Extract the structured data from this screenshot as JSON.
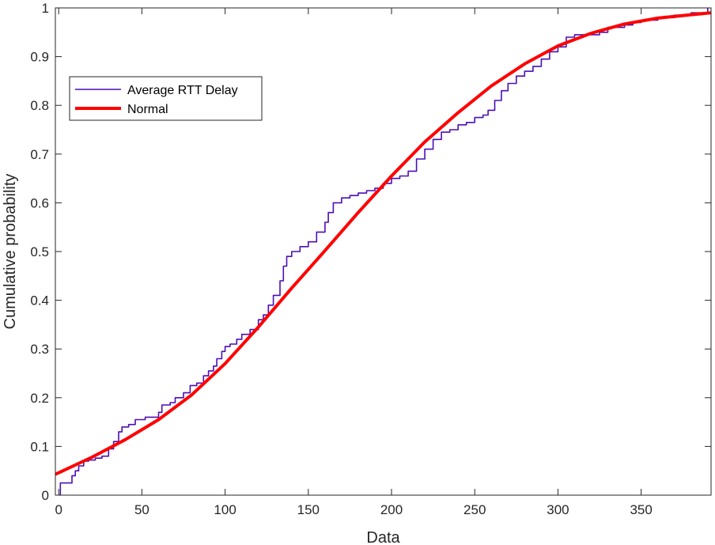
{
  "chart_data": {
    "type": "line",
    "xlabel": "Data",
    "ylabel": "Cumulative probability",
    "xlim": [
      -2,
      392
    ],
    "ylim": [
      0,
      1
    ],
    "x_ticks": [
      0,
      50,
      100,
      150,
      200,
      250,
      300,
      350
    ],
    "y_ticks": [
      0,
      0.1,
      0.2,
      0.3,
      0.4,
      0.5,
      0.6,
      0.7,
      0.8,
      0.9,
      1
    ],
    "y_tick_labels": [
      "0",
      "0.1",
      "0.2",
      "0.3",
      "0.4",
      "0.5",
      "0.6",
      "0.7",
      "0.8",
      "0.9",
      "1"
    ],
    "grid": false,
    "legend_position": "top-left",
    "series": [
      {
        "name": "Average RTT Delay",
        "style": "stairs",
        "color": "#4b0fb4",
        "x": [
          0,
          1,
          8,
          10,
          12,
          15,
          18,
          22,
          26,
          30,
          33,
          36,
          38,
          42,
          46,
          52,
          56,
          60,
          62,
          67,
          70,
          75,
          79,
          83,
          87,
          90,
          93,
          95,
          98,
          100,
          103,
          107,
          110,
          115,
          120,
          123,
          126,
          129,
          133,
          135,
          137,
          140,
          145,
          150,
          155,
          160,
          162,
          165,
          170,
          175,
          180,
          185,
          190,
          195,
          200,
          205,
          210,
          215,
          220,
          225,
          230,
          235,
          240,
          245,
          250,
          255,
          258,
          262,
          266,
          270,
          275,
          280,
          285,
          290,
          295,
          300,
          305,
          310,
          315,
          320,
          325,
          330,
          340,
          345,
          350,
          360,
          370,
          380,
          385,
          390
        ],
        "y": [
          0,
          0.025,
          0.04,
          0.05,
          0.06,
          0.07,
          0.072,
          0.076,
          0.08,
          0.095,
          0.11,
          0.13,
          0.14,
          0.145,
          0.155,
          0.16,
          0.16,
          0.17,
          0.185,
          0.19,
          0.2,
          0.21,
          0.225,
          0.23,
          0.245,
          0.255,
          0.265,
          0.28,
          0.295,
          0.305,
          0.31,
          0.32,
          0.33,
          0.34,
          0.36,
          0.37,
          0.39,
          0.41,
          0.44,
          0.47,
          0.49,
          0.5,
          0.51,
          0.52,
          0.54,
          0.56,
          0.58,
          0.6,
          0.61,
          0.615,
          0.62,
          0.625,
          0.63,
          0.64,
          0.65,
          0.655,
          0.665,
          0.69,
          0.71,
          0.73,
          0.745,
          0.75,
          0.76,
          0.765,
          0.775,
          0.78,
          0.79,
          0.81,
          0.83,
          0.845,
          0.86,
          0.87,
          0.88,
          0.895,
          0.91,
          0.92,
          0.94,
          0.945,
          0.945,
          0.945,
          0.95,
          0.96,
          0.965,
          0.97,
          0.975,
          0.98,
          0.985,
          0.99,
          0.99,
          1.0
        ]
      },
      {
        "name": "Normal",
        "style": "line",
        "color": "#ff0000",
        "x": [
          -2,
          0,
          20,
          40,
          60,
          80,
          100,
          120,
          140,
          160,
          180,
          200,
          220,
          240,
          260,
          280,
          300,
          320,
          340,
          360,
          380,
          392
        ],
        "y": [
          0.043,
          0.046,
          0.078,
          0.114,
          0.155,
          0.206,
          0.27,
          0.345,
          0.425,
          0.502,
          0.58,
          0.655,
          0.725,
          0.785,
          0.84,
          0.885,
          0.922,
          0.948,
          0.967,
          0.979,
          0.986,
          0.99
        ]
      }
    ]
  }
}
